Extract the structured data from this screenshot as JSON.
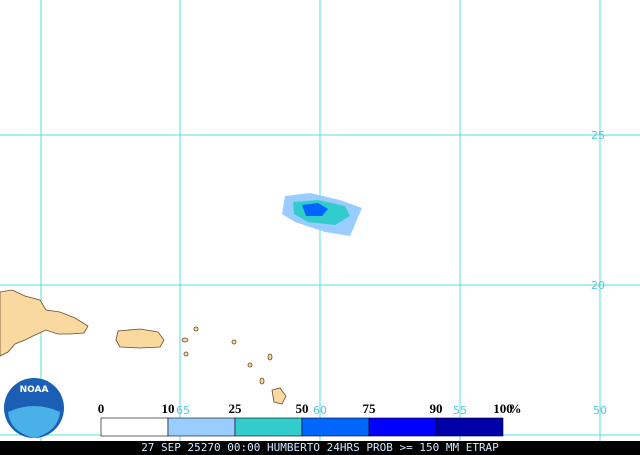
{
  "map": {
    "lat_labels": [
      "25",
      "20"
    ],
    "lon_labels": [
      "65",
      "60",
      "55",
      "50"
    ],
    "logo": "NOAA",
    "legend": {
      "ticks": [
        "0",
        "10",
        "25",
        "50",
        "75",
        "90",
        "100"
      ],
      "unit": "%",
      "colors": [
        "#ffffff",
        "#99ccff",
        "#33cccc",
        "#0066ff",
        "#0000ff",
        "#0000aa"
      ]
    },
    "caption": "27 SEP 25270 00:00 HUMBERTO 24HRS PROB >= 150 MM ETRAP"
  }
}
